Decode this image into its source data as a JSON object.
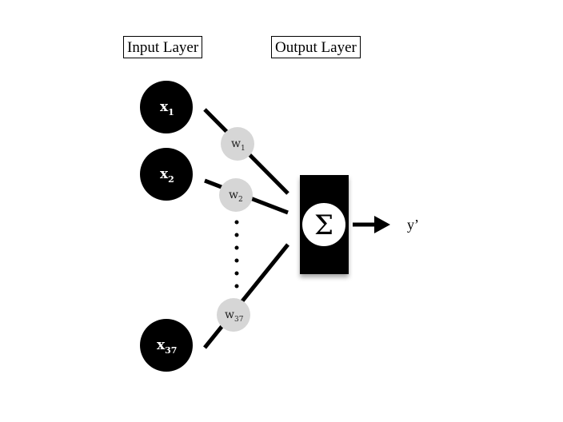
{
  "headers": {
    "input_layer": "Input Layer",
    "output_layer": "Output Layer"
  },
  "inputs": [
    {
      "base": "x",
      "sub": "1"
    },
    {
      "base": "x",
      "sub": "2"
    },
    {
      "base": "x",
      "sub": "37"
    }
  ],
  "weights": [
    {
      "base": "w",
      "sub": "1"
    },
    {
      "base": "w",
      "sub": "2"
    },
    {
      "base": "w",
      "sub": "37"
    }
  ],
  "output": {
    "symbol": "Σ",
    "label": "y’"
  },
  "colors": {
    "node_fill": "#000000",
    "weight_fill": "#d6d6d6",
    "edge": "#000000"
  }
}
